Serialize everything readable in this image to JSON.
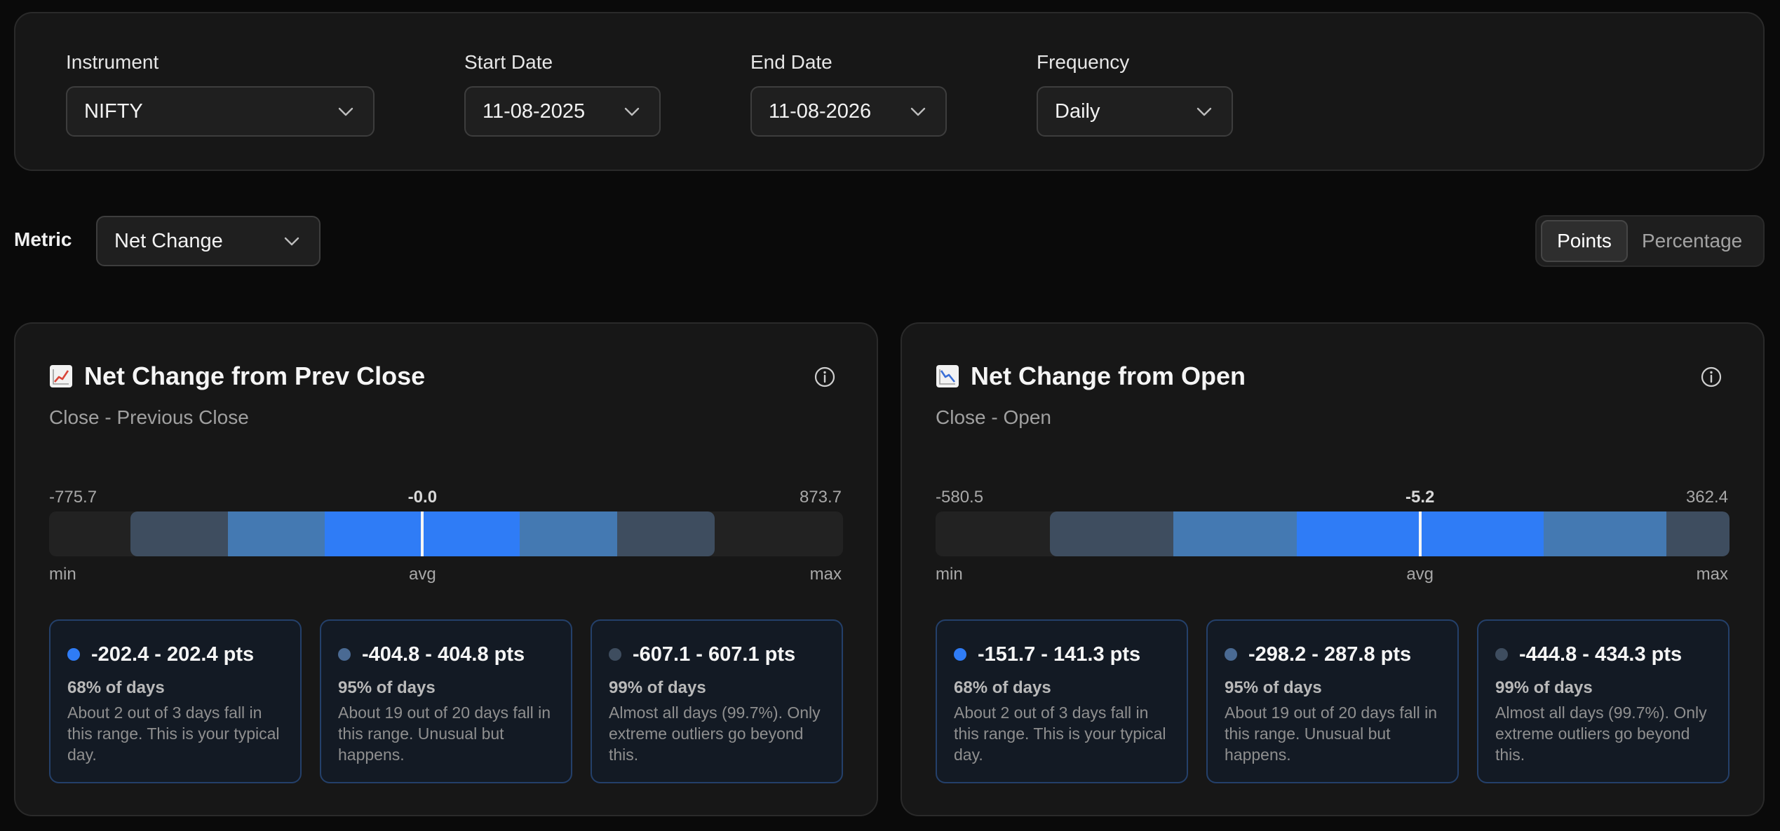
{
  "filters": {
    "instrument": {
      "label": "Instrument",
      "value": "NIFTY"
    },
    "start_date": {
      "label": "Start Date",
      "value": "11-08-2025"
    },
    "end_date": {
      "label": "End Date",
      "value": "11-08-2026"
    },
    "frequency": {
      "label": "Frequency",
      "value": "Daily"
    }
  },
  "metric": {
    "label": "Metric",
    "value": "Net Change"
  },
  "unit_toggle": {
    "options": [
      "Points",
      "Percentage"
    ],
    "selected": "Points"
  },
  "colors": {
    "band_1sd": "#2f7cf6",
    "band_2sd": "#4479b2",
    "band_3sd": "#3e4d5f",
    "background": "#0a0a0a"
  },
  "cards": [
    {
      "icon": "chart-increasing-icon",
      "title": "Net Change from Prev Close",
      "subtitle": "Close - Previous Close",
      "min_value": "-775.7",
      "avg_value": "-0.0",
      "max_value": "873.7",
      "min_label": "min",
      "avg_label": "avg",
      "max_label": "max",
      "scale": {
        "min": -775.7,
        "avg": -0.0,
        "max": 873.7
      },
      "bands": [
        {
          "low": -202.4,
          "high": 202.4
        },
        {
          "low": -404.8,
          "high": 404.8
        },
        {
          "low": -607.1,
          "high": 607.1
        }
      ],
      "ranges": [
        {
          "value": "-202.4 - 202.4 pts",
          "pct": "68% of days",
          "desc": "About 2 out of 3 days fall in this range. This is your typical day."
        },
        {
          "value": "-404.8 - 404.8 pts",
          "pct": "95% of days",
          "desc": "About 19 out of 20 days fall in this range. Unusual but happens."
        },
        {
          "value": "-607.1 - 607.1 pts",
          "pct": "99% of days",
          "desc": "Almost all days (99.7%). Only extreme outliers go beyond this."
        }
      ]
    },
    {
      "icon": "chart-decreasing-icon",
      "title": "Net Change from Open",
      "subtitle": "Close - Open",
      "min_value": "-580.5",
      "avg_value": "-5.2",
      "max_value": "362.4",
      "min_label": "min",
      "avg_label": "avg",
      "max_label": "max",
      "scale": {
        "min": -580.5,
        "avg": -5.2,
        "max": 362.4
      },
      "bands": [
        {
          "low": -151.7,
          "high": 141.3
        },
        {
          "low": -298.2,
          "high": 287.8
        },
        {
          "low": -444.8,
          "high": 434.3
        }
      ],
      "ranges": [
        {
          "value": "-151.7 - 141.3 pts",
          "pct": "68% of days",
          "desc": "About 2 out of 3 days fall in this range. This is your typical day."
        },
        {
          "value": "-298.2 - 287.8 pts",
          "pct": "95% of days",
          "desc": "About 19 out of 20 days fall in this range. Unusual but happens."
        },
        {
          "value": "-444.8 - 434.3 pts",
          "pct": "99% of days",
          "desc": "Almost all days (99.7%). Only extreme outliers go beyond this."
        }
      ]
    }
  ]
}
